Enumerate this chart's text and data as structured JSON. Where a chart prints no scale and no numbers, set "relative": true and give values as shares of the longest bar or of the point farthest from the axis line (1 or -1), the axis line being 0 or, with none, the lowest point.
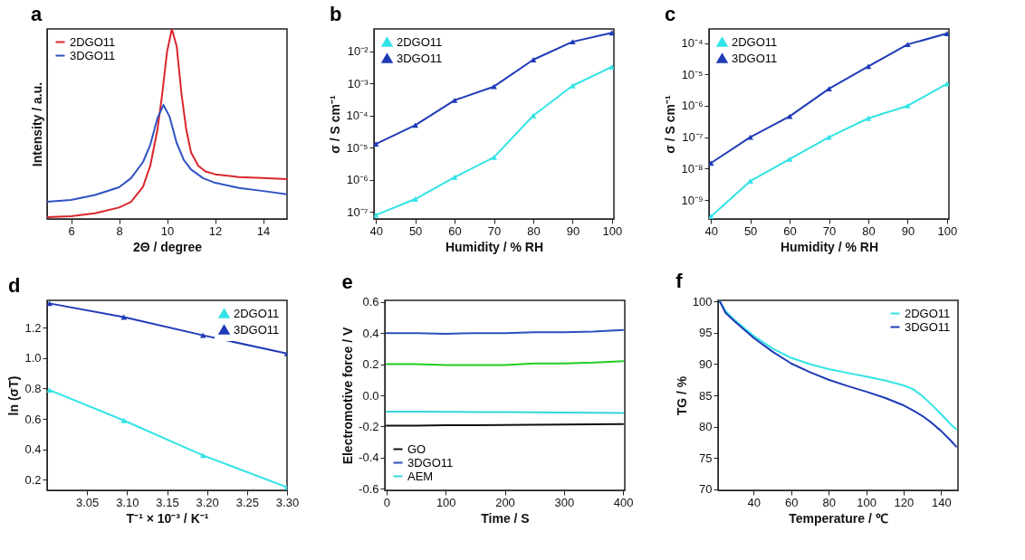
{
  "chart_data": [
    {
      "type": "line",
      "title": "a",
      "xlabel": "2Θ / degree",
      "ylabel": "Intensity / a.u.",
      "relative": true,
      "xlim": [
        5,
        15
      ],
      "xticks": [
        6,
        8,
        10,
        12,
        14
      ],
      "legend": "top left",
      "series": [
        {
          "name": "2DGO11",
          "color": "#d9262c",
          "x": [
            5,
            6,
            7,
            8,
            8.5,
            9,
            9.3,
            9.6,
            9.8,
            10,
            10.2,
            10.4,
            10.6,
            10.8,
            11,
            11.3,
            11.6,
            12,
            13,
            14,
            15
          ],
          "values": [
            0.01,
            0.014,
            0.03,
            0.06,
            0.09,
            0.17,
            0.28,
            0.47,
            0.66,
            0.88,
            1,
            0.91,
            0.66,
            0.47,
            0.35,
            0.28,
            0.25,
            0.235,
            0.22,
            0.215,
            0.21
          ]
        },
        {
          "name": "3DGO11",
          "color": "#2f52c4",
          "x": [
            5,
            6,
            7,
            8,
            8.5,
            9,
            9.3,
            9.6,
            9.85,
            10.1,
            10.4,
            10.7,
            11,
            11.5,
            12,
            13,
            14,
            15
          ],
          "values": [
            0.09,
            0.1,
            0.126,
            0.167,
            0.215,
            0.3,
            0.39,
            0.53,
            0.6,
            0.54,
            0.4,
            0.31,
            0.26,
            0.215,
            0.19,
            0.163,
            0.147,
            0.13
          ]
        }
      ]
    },
    {
      "type": "line",
      "title": "b",
      "xlabel": "Humidity / % RH",
      "ylabel": "σ / S cm⁻¹",
      "log": true,
      "xlim": [
        39.5,
        100.5
      ],
      "xticks": [
        40,
        50,
        60,
        70,
        80,
        90,
        100
      ],
      "ylim": [
        6e-08,
        0.05
      ],
      "yticks": [
        {
          "value": 1e-07,
          "label": "10⁻⁷"
        },
        {
          "value": 1e-06,
          "label": "10⁻⁶"
        },
        {
          "value": 1e-05,
          "label": "10⁻⁵"
        },
        {
          "value": 0.0001,
          "label": "10⁻⁴"
        },
        {
          "value": 0.001,
          "label": "10⁻³"
        },
        {
          "value": 0.01,
          "label": "10⁻²"
        }
      ],
      "legend": "top left",
      "marker": "triangle",
      "x": [
        40,
        50,
        60,
        70,
        80,
        90,
        100
      ],
      "series": [
        {
          "name": "2DGO11",
          "color": "#33e3e6",
          "values": [
            8e-08,
            2.5e-07,
            1.2e-06,
            5e-06,
            0.0001,
            0.00085,
            0.0033
          ]
        },
        {
          "name": "3DGO11",
          "color": "#1f3bb8",
          "values": [
            1.3e-05,
            5e-05,
            0.0003,
            0.0008,
            0.0055,
            0.02,
            0.038
          ]
        }
      ]
    },
    {
      "type": "line",
      "title": "c",
      "xlabel": "Humidity / % RH",
      "ylabel": "σ / S cm⁻¹",
      "log": true,
      "xlim": [
        39.5,
        100.5
      ],
      "xticks": [
        40,
        50,
        60,
        70,
        80,
        90,
        100
      ],
      "ylim": [
        2.5e-10,
        0.00028
      ],
      "yticks": [
        {
          "value": 1e-09,
          "label": "10⁻⁹"
        },
        {
          "value": 1e-08,
          "label": "10⁻⁸"
        },
        {
          "value": 1e-07,
          "label": "10⁻⁷"
        },
        {
          "value": 1e-06,
          "label": "10⁻⁶"
        },
        {
          "value": 1e-05,
          "label": "10⁻⁵"
        },
        {
          "value": 0.0001,
          "label": "10⁻⁴"
        }
      ],
      "legend": "top left",
      "marker": "triangle",
      "x": [
        40,
        50,
        60,
        70,
        80,
        90,
        100
      ],
      "series": [
        {
          "name": "2DGO11",
          "color": "#33e3e6",
          "values": [
            3e-10,
            4e-09,
            2e-08,
            1e-07,
            4e-07,
            1e-06,
            5e-06
          ]
        },
        {
          "name": "3DGO11",
          "color": "#1f3bb8",
          "values": [
            1.5e-08,
            1e-07,
            4.6e-07,
            3.5e-06,
            1.8e-05,
            9e-05,
            0.0002
          ]
        }
      ]
    },
    {
      "type": "line",
      "title": "d",
      "xlabel": "T⁻¹ × 10⁻³ / K⁻¹",
      "ylabel": "ln (σT)",
      "xlim": [
        3.0,
        3.3
      ],
      "xticks": [
        3.05,
        {
          "value": 3.1,
          "label": "3.10"
        },
        3.15,
        {
          "value": 3.2,
          "label": "3.20"
        },
        3.25,
        {
          "value": 3.3,
          "label": "3.30"
        }
      ],
      "ylim": [
        0.13,
        1.38
      ],
      "yticks": [
        0.2,
        0.4,
        0.6,
        0.8,
        {
          "value": 1,
          "label": "1.0"
        },
        1.2
      ],
      "legend": "top right",
      "marker": "triangle",
      "x": [
        3.003,
        3.096,
        3.195,
        3.3
      ],
      "series": [
        {
          "name": "2DGO11",
          "color": "#33e3e6",
          "values": [
            0.79,
            0.59,
            0.36,
            0.15
          ]
        },
        {
          "name": "3DGO11",
          "color": "#1f3bb8",
          "values": [
            1.36,
            1.27,
            1.15,
            1.03
          ]
        }
      ]
    },
    {
      "type": "line",
      "title": "e",
      "xlabel": "Time / S",
      "ylabel": "Electromotive force / V",
      "xlim": [
        -3,
        403
      ],
      "xticks": [
        0,
        100,
        200,
        300,
        400
      ],
      "ylim": [
        -0.61,
        0.61
      ],
      "yticks": [
        0.6,
        0.4,
        0.2,
        {
          "value": 0,
          "label": "0.0"
        },
        -0.2,
        -0.4,
        -0.6
      ],
      "legend": "bottom left",
      "x": [
        0,
        50,
        100,
        150,
        200,
        250,
        300,
        350,
        400
      ],
      "series": [
        {
          "name": "GO",
          "color": "#111111",
          "values": [
            -0.195,
            -0.194,
            -0.192,
            -0.191,
            -0.19,
            -0.189,
            -0.188,
            -0.186,
            -0.185
          ]
        },
        {
          "name": "3DGO11",
          "color": "#2a4fbf",
          "values": [
            0.4,
            0.4,
            0.395,
            0.4,
            0.4,
            0.405,
            0.405,
            0.41,
            0.42
          ]
        },
        {
          "name": "AEM",
          "color": "#33d6dc",
          "values": [
            -0.105,
            -0.105,
            -0.106,
            -0.107,
            -0.108,
            -0.109,
            -0.11,
            -0.112,
            -0.113
          ]
        },
        {
          "color": "#22cc22",
          "values": [
            0.2,
            0.2,
            0.195,
            0.195,
            0.195,
            0.205,
            0.205,
            0.21,
            0.22
          ]
        }
      ]
    },
    {
      "type": "line",
      "title": "f",
      "xlabel": "Temperature / ℃",
      "ylabel": "TG / %",
      "xlim": [
        21,
        149
      ],
      "xticks": [
        40,
        60,
        80,
        100,
        120,
        140
      ],
      "ylim": [
        69.8,
        100.2
      ],
      "yticks": [
        70,
        75,
        80,
        85,
        90,
        95,
        100
      ],
      "legend": "top right",
      "x": [
        22,
        25,
        30,
        40,
        50,
        60,
        70,
        80,
        90,
        100,
        110,
        120,
        125,
        130,
        135,
        140,
        145,
        148
      ],
      "series": [
        {
          "name": "2DGO11",
          "color": "#33e3e6",
          "values": [
            100,
            98.5,
            97,
            94.5,
            92.5,
            91,
            90,
            89.2,
            88.6,
            88,
            87.4,
            86.6,
            86,
            84.9,
            83.5,
            82,
            80.4,
            79.6
          ]
        },
        {
          "name": "3DGO11",
          "color": "#1f3bb8",
          "values": [
            100,
            98.2,
            96.8,
            94.2,
            92,
            90.1,
            88.7,
            87.5,
            86.5,
            85.6,
            84.6,
            83.4,
            82.6,
            81.7,
            80.6,
            79.3,
            77.8,
            76.8
          ]
        }
      ]
    }
  ]
}
